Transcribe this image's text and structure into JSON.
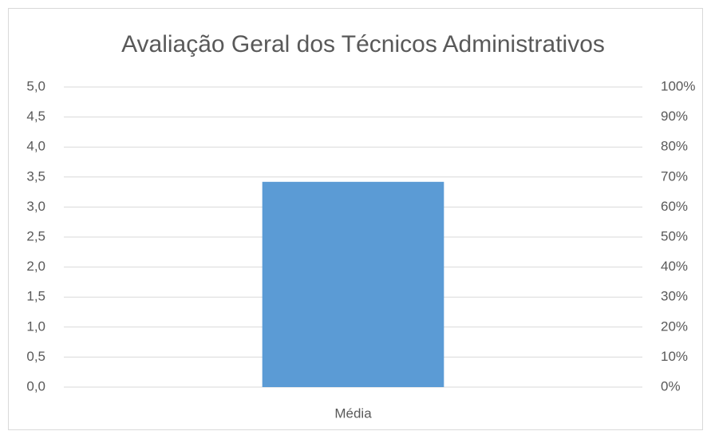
{
  "chart_data": {
    "type": "bar",
    "title": "Avaliação Geral dos Técnicos Administrativos",
    "categories": [
      "Média"
    ],
    "values": [
      3.42
    ],
    "color": "#5b9bd5",
    "ylim": [
      0,
      5
    ],
    "yticks": [
      {
        "value": 0,
        "label": "0,0"
      },
      {
        "value": 0.5,
        "label": "0,5"
      },
      {
        "value": 1,
        "label": "1,0"
      },
      {
        "value": 1.5,
        "label": "1,5"
      },
      {
        "value": 2,
        "label": "2,0"
      },
      {
        "value": 2.5,
        "label": "2,5"
      },
      {
        "value": 3,
        "label": "3,0"
      },
      {
        "value": 3.5,
        "label": "3,5"
      },
      {
        "value": 4,
        "label": "4,0"
      },
      {
        "value": 4.5,
        "label": "4,5"
      },
      {
        "value": 5,
        "label": "5,0"
      }
    ],
    "y2lim": [
      0,
      100
    ],
    "y2ticks": [
      {
        "value": 0,
        "label": "0%"
      },
      {
        "value": 10,
        "label": "10%"
      },
      {
        "value": 20,
        "label": "20%"
      },
      {
        "value": 30,
        "label": "30%"
      },
      {
        "value": 40,
        "label": "40%"
      },
      {
        "value": 50,
        "label": "50%"
      },
      {
        "value": 60,
        "label": "60%"
      },
      {
        "value": 70,
        "label": "70%"
      },
      {
        "value": 80,
        "label": "80%"
      },
      {
        "value": 90,
        "label": "90%"
      },
      {
        "value": 100,
        "label": "100%"
      }
    ],
    "grid": true
  }
}
